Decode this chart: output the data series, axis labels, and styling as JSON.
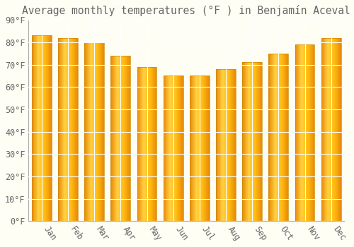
{
  "title": "Average monthly temperatures (°F ) in Benjamín Aceval",
  "months": [
    "Jan",
    "Feb",
    "Mar",
    "Apr",
    "May",
    "Jun",
    "Jul",
    "Aug",
    "Sep",
    "Oct",
    "Nov",
    "Dec"
  ],
  "values": [
    83,
    82,
    80,
    74,
    69,
    65,
    65,
    68,
    71,
    75,
    79,
    82
  ],
  "bar_color": "#FFAA00",
  "bar_edge_color": "#CC8800",
  "background_color": "#FFFEF5",
  "grid_color": "#FFFFFF",
  "text_color": "#666666",
  "ylim": [
    0,
    90
  ],
  "yticks": [
    0,
    10,
    20,
    30,
    40,
    50,
    60,
    70,
    80,
    90
  ],
  "ytick_labels": [
    "0°F",
    "10°F",
    "20°F",
    "30°F",
    "40°F",
    "50°F",
    "60°F",
    "70°F",
    "80°F",
    "90°F"
  ],
  "title_fontsize": 10.5,
  "tick_fontsize": 8.5,
  "bar_width": 0.75
}
